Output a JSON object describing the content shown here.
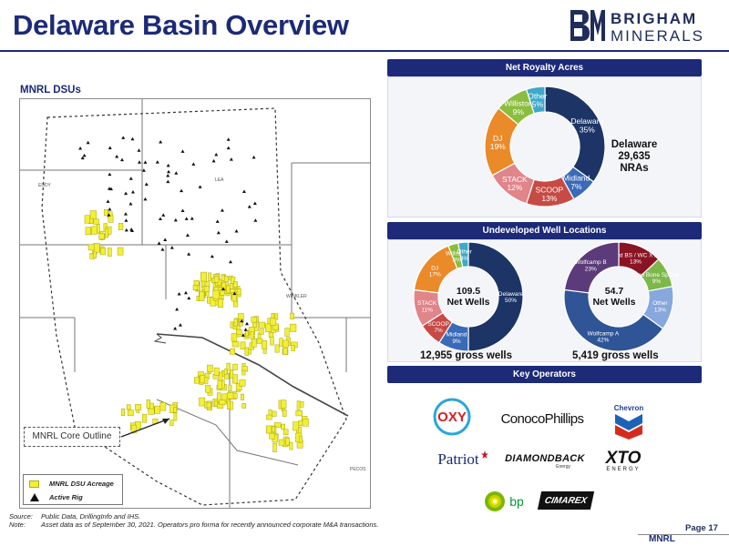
{
  "title": "Delaware Basin Overview",
  "logo": {
    "line1": "BRIGHAM",
    "line2": "MINERALS"
  },
  "map": {
    "section_label": "MNRL DSUs",
    "callout": "MNRL Core Outline",
    "legend": {
      "acreage": "MNRL DSU Acreage",
      "rig": "Active Rig"
    },
    "place_labels": [
      "WINKLER",
      "PECOS",
      "EDDY",
      "LEA"
    ]
  },
  "sections": {
    "net_royalty": "Net Royalty Acres",
    "undeveloped": "Undeveloped Well Locations",
    "key_operators": "Key Operators"
  },
  "chart_data": [
    {
      "type": "pie",
      "title": "Net Royalty Acres",
      "slices": [
        {
          "label": "Delaware",
          "value": 35,
          "color": "#1c3566"
        },
        {
          "label": "Midland",
          "value": 7,
          "color": "#3a6ab8"
        },
        {
          "label": "SCOOP",
          "value": 13,
          "color": "#c74a45"
        },
        {
          "label": "STACK",
          "value": 12,
          "color": "#e0858a"
        },
        {
          "label": "DJ",
          "value": 19,
          "color": "#ea8a28"
        },
        {
          "label": "Williston",
          "value": 9,
          "color": "#8bbd3e"
        },
        {
          "label": "Other",
          "value": 5,
          "color": "#3ea9c9"
        }
      ],
      "callout": {
        "line1": "Delaware",
        "line2": "29,635",
        "line3": "NRAs"
      }
    },
    {
      "type": "pie",
      "title": "Undeveloped Well Locations - Net Wells",
      "slices": [
        {
          "label": "Delaware",
          "value": 50,
          "color": "#1c3566"
        },
        {
          "label": "Midland",
          "value": 9,
          "color": "#3a6ab8"
        },
        {
          "label": "SCOOP",
          "value": 7,
          "color": "#c74a45"
        },
        {
          "label": "STACK",
          "value": 11,
          "color": "#e0858a"
        },
        {
          "label": "DJ",
          "value": 17,
          "color": "#ea8a28"
        },
        {
          "label": "Williston",
          "value": 3,
          "color": "#8bbd3e"
        },
        {
          "label": "Other",
          "value": 3,
          "color": "#3ea9c9"
        }
      ],
      "center": {
        "value": "109.5",
        "label": "Net Wells"
      },
      "footer": "12,955 gross wells"
    },
    {
      "type": "pie",
      "title": "Undeveloped Well Locations - Delaware",
      "slices": [
        {
          "label": "3rd BS / WC XY",
          "value": 13,
          "color": "#8a1424"
        },
        {
          "label": "2nd Bone Spring",
          "value": 9,
          "color": "#7cb84a"
        },
        {
          "label": "Other",
          "value": 13,
          "color": "#86a8dd"
        },
        {
          "label": "Wolfcamp A",
          "value": 42,
          "color": "#2f5597"
        },
        {
          "label": "Wolfcamp B",
          "value": 23,
          "color": "#5b3b7a"
        }
      ],
      "center": {
        "value": "54.7",
        "label": "Net Wells"
      },
      "footer": "5,419 gross wells"
    }
  ],
  "operators": [
    {
      "name": "OXY"
    },
    {
      "name": "ConocoPhillips"
    },
    {
      "name": "Chevron"
    },
    {
      "name": "Patriot"
    },
    {
      "name": "DIAMONDBACK",
      "sub": "Energy"
    },
    {
      "name": "XTO",
      "sub": "ENERGY"
    },
    {
      "name": "bp"
    },
    {
      "name": "CIMAREX"
    }
  ],
  "footer": {
    "source_key": "Source:",
    "source": "Public Data, DrillingInfo and IHS.",
    "note_key": "Note:",
    "note": "Asset data as of September 30, 2021.  Operators pro forma for recently announced corporate M&A transactions."
  },
  "brand_tag": "MNRL",
  "page": "Page 17",
  "colors": {
    "brand": "#1c2a78",
    "acreage": "#f3ef35"
  }
}
